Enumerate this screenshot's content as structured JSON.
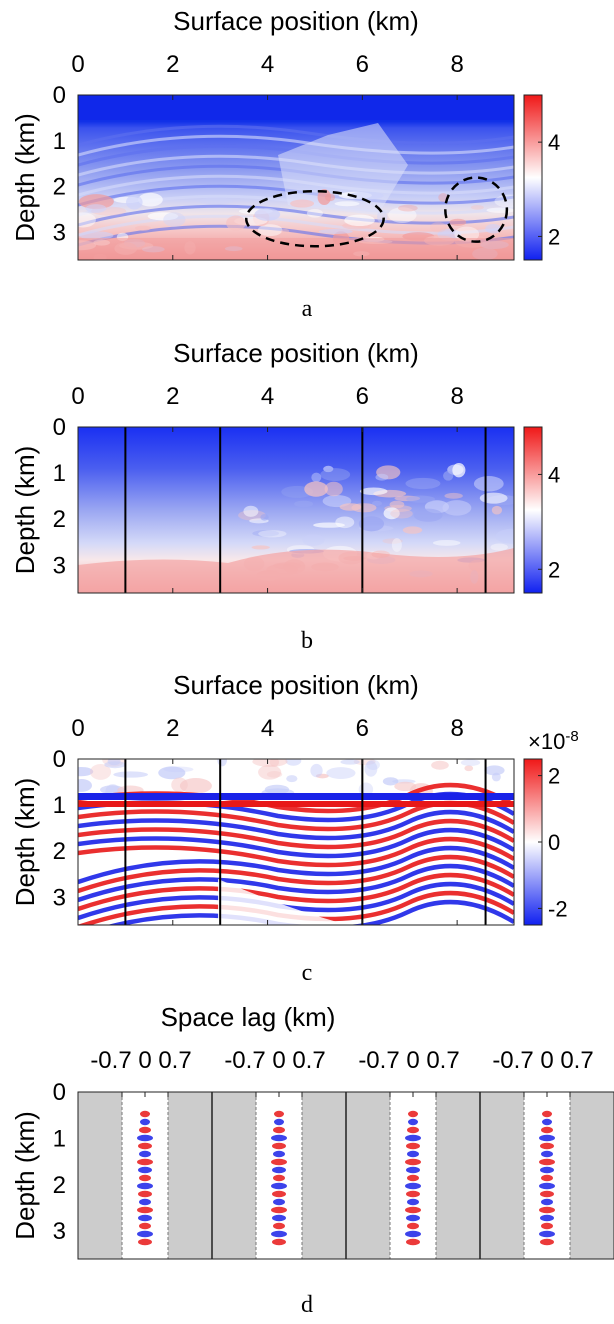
{
  "chart_data": [
    {
      "panel": "a",
      "type": "heatmap",
      "xlabel": "Surface position (km)",
      "ylabel": "Depth (km)",
      "xticks": [
        0,
        2,
        4,
        6,
        8
      ],
      "yticks": [
        0,
        1,
        2,
        3
      ],
      "xlim": [
        0,
        9.2
      ],
      "ylim": [
        0,
        3.6
      ],
      "colorbar": {
        "ticks": [
          2,
          4
        ],
        "range": [
          1.5,
          5.0
        ],
        "colormap": "blue-white-red"
      },
      "annotations": [
        {
          "type": "dashed-ellipse",
          "center_km": [
            5.0,
            2.7
          ],
          "radii_km": [
            1.45,
            0.6
          ]
        },
        {
          "type": "dashed-ellipse",
          "center_km": [
            8.4,
            2.5
          ],
          "radii_km": [
            0.65,
            0.7
          ]
        }
      ],
      "caption": "a"
    },
    {
      "panel": "b",
      "type": "heatmap",
      "xlabel": "Surface position (km)",
      "ylabel": "Depth (km)",
      "xticks": [
        0,
        2,
        4,
        6,
        8
      ],
      "yticks": [
        0,
        1,
        2,
        3
      ],
      "xlim": [
        0,
        9.2
      ],
      "ylim": [
        0,
        3.6
      ],
      "colorbar": {
        "ticks": [
          2,
          4
        ],
        "range": [
          1.5,
          5.0
        ],
        "colormap": "blue-white-red"
      },
      "vertical_lines_km": [
        1.0,
        3.0,
        6.0,
        8.6
      ],
      "caption": "b"
    },
    {
      "panel": "c",
      "type": "heatmap",
      "xlabel": "Surface position (km)",
      "ylabel": "Depth (km)",
      "xticks": [
        0,
        2,
        4,
        6,
        8
      ],
      "yticks": [
        0,
        1,
        2,
        3
      ],
      "xlim": [
        0,
        9.2
      ],
      "ylim": [
        0,
        3.6
      ],
      "colorbar": {
        "ticks": [
          -2,
          0,
          2
        ],
        "range": [
          -2.5,
          2.5
        ],
        "multiplier": "×10",
        "exponent": "-8",
        "colormap": "blue-white-red"
      },
      "vertical_lines_km": [
        1.0,
        3.0,
        6.0,
        8.6
      ],
      "caption": "c"
    },
    {
      "panel": "d",
      "type": "heatmap",
      "xlabel": "Space lag (km)",
      "ylabel": "Depth (km)",
      "gather_xticks": [
        "-0.7",
        "0",
        "0.7"
      ],
      "gather_count": 4,
      "yticks": [
        0,
        1,
        2,
        3
      ],
      "ylim": [
        0,
        3.6
      ],
      "caption": "d"
    }
  ]
}
